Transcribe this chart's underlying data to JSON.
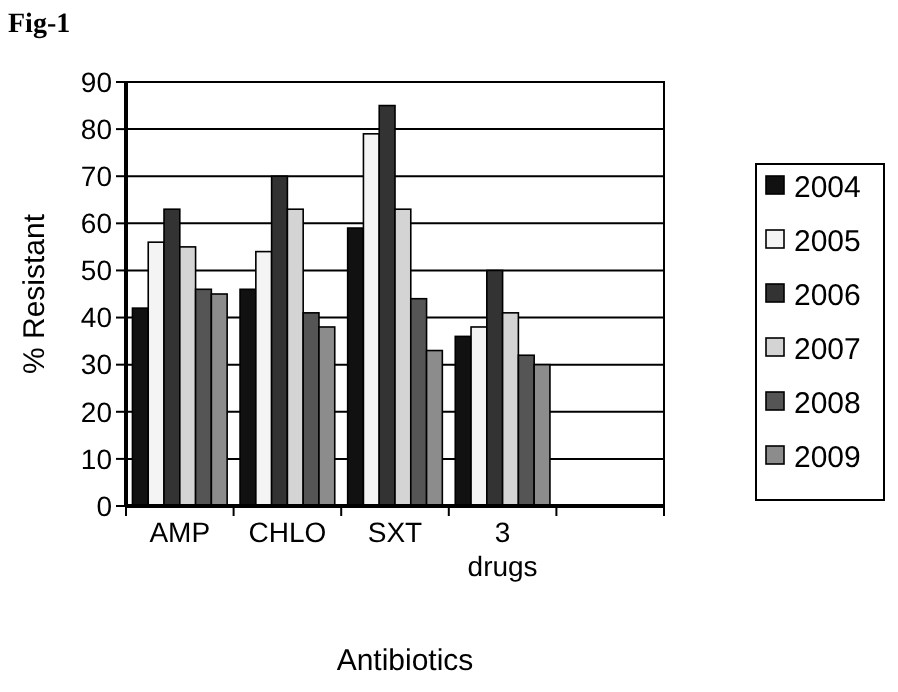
{
  "chart_data": {
    "type": "bar",
    "title": "Fig-1",
    "xlabel": "Antibiotics",
    "ylabel": "% Resistant",
    "categories": [
      "AMP",
      "CHLO",
      "SXT",
      "3 drugs",
      null
    ],
    "series": [
      {
        "name": "2004",
        "color": "#111111",
        "values": [
          42,
          46,
          59,
          36,
          null
        ]
      },
      {
        "name": "2005",
        "color": "#f4f4f4",
        "values": [
          56,
          54,
          79,
          38,
          null
        ]
      },
      {
        "name": "2006",
        "color": "#333333",
        "values": [
          63,
          70,
          85,
          50,
          null
        ]
      },
      {
        "name": "2007",
        "color": "#d4d4d4",
        "values": [
          55,
          63,
          63,
          41,
          null
        ]
      },
      {
        "name": "2008",
        "color": "#555555",
        "values": [
          46,
          41,
          44,
          32,
          null
        ]
      },
      {
        "name": "2009",
        "color": "#8c8c8c",
        "values": [
          45,
          38,
          33,
          30,
          null
        ]
      }
    ],
    "ylim": [
      0,
      90
    ],
    "yticks": [
      0,
      10,
      20,
      30,
      40,
      50,
      60,
      70,
      80,
      90
    ],
    "grid": "y",
    "legend": "right"
  }
}
